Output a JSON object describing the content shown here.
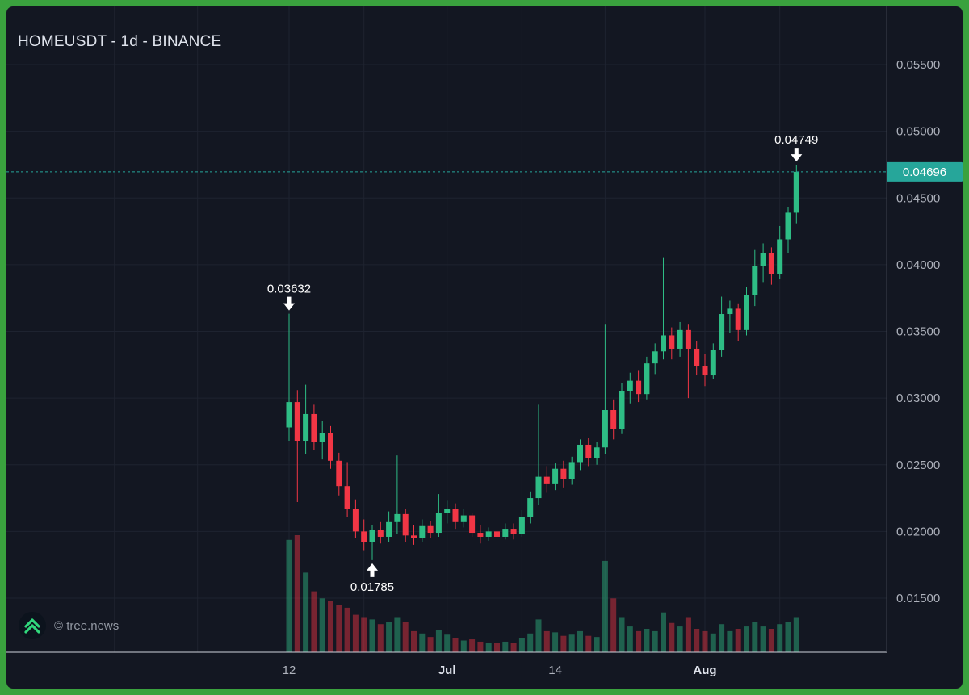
{
  "header": {
    "title": "HOMEUSDT - 1d - BINANCE"
  },
  "footer": {
    "watermark": "© tree.news",
    "logo": "tree-news-double-chevron-up-icon"
  },
  "colors": {
    "frame": "#3aa23e",
    "background": "#131722",
    "grid": "#1e2330",
    "axis_line": "#cfd3dc",
    "axis_separator": "#3e424d",
    "text_primary": "#dfe3ec",
    "text_axis": "#aeb2bc",
    "candle_up": "#2ebd85",
    "candle_down": "#f23645",
    "volume_up": "rgba(46,189,133,0.45)",
    "volume_down": "rgba(242,54,69,0.45)",
    "price_line": "#26a69a",
    "price_tag_bg": "#26a69a",
    "price_tag_text": "#ffffff",
    "annotation": "#ffffff",
    "logo_green": "#31d87c",
    "logo_bg": "#0c131d"
  },
  "chart_data": {
    "type": "candlestick",
    "symbol": "HOMEUSDT",
    "interval": "1d",
    "exchange": "BINANCE",
    "current_price": {
      "value": 0.04696,
      "label": "0.04696"
    },
    "y_axis": {
      "min": 0.015,
      "max": 0.055,
      "tick_step": 0.005,
      "side": "right",
      "ticks": [
        {
          "value": 0.055,
          "label": "0.05500"
        },
        {
          "value": 0.05,
          "label": "0.05000"
        },
        {
          "value": 0.045,
          "label": "0.04500"
        },
        {
          "value": 0.04,
          "label": "0.04000"
        },
        {
          "value": 0.035,
          "label": "0.03500"
        },
        {
          "value": 0.03,
          "label": "0.03000"
        },
        {
          "value": 0.025,
          "label": "0.02500"
        },
        {
          "value": 0.02,
          "label": "0.02000"
        },
        {
          "value": 0.015,
          "label": "0.01500"
        }
      ]
    },
    "x_axis": {
      "side": "bottom",
      "ticks": [
        {
          "index": 0,
          "label": "12",
          "bold": false
        },
        {
          "index": 19,
          "label": "Jul",
          "bold": true
        },
        {
          "index": 32,
          "label": "14",
          "bold": false
        },
        {
          "index": 50,
          "label": "Aug",
          "bold": true
        }
      ],
      "gridline_indices": [
        -21,
        -11,
        0,
        9,
        19,
        28,
        38,
        50,
        59
      ]
    },
    "annotations": [
      {
        "index": 0,
        "price": 0.03632,
        "label": "0.03632",
        "direction": "down"
      },
      {
        "index": 10,
        "price": 0.01785,
        "label": "0.01785",
        "direction": "up"
      },
      {
        "index": 61,
        "price": 0.04749,
        "label": "0.04749",
        "direction": "down"
      }
    ],
    "grid": true,
    "volume_unit": "relative",
    "candles": [
      [
        0.0278,
        0.03632,
        0.0268,
        0.0297,
        96
      ],
      [
        0.0297,
        0.0306,
        0.0222,
        0.0268,
        100
      ],
      [
        0.0268,
        0.031,
        0.0258,
        0.0288,
        68
      ],
      [
        0.0288,
        0.0295,
        0.0261,
        0.0267,
        52
      ],
      [
        0.0267,
        0.0283,
        0.0254,
        0.0274,
        46
      ],
      [
        0.0274,
        0.0279,
        0.0247,
        0.0253,
        44
      ],
      [
        0.0253,
        0.0259,
        0.0227,
        0.0234,
        40
      ],
      [
        0.0234,
        0.0252,
        0.0211,
        0.0217,
        38
      ],
      [
        0.0217,
        0.0224,
        0.0195,
        0.02,
        32
      ],
      [
        0.02,
        0.0209,
        0.0186,
        0.0192,
        30
      ],
      [
        0.0192,
        0.0205,
        0.01785,
        0.0201,
        28
      ],
      [
        0.0201,
        0.0207,
        0.0191,
        0.0196,
        24
      ],
      [
        0.0196,
        0.0215,
        0.0192,
        0.0207,
        26
      ],
      [
        0.0207,
        0.0257,
        0.0198,
        0.0213,
        30
      ],
      [
        0.0213,
        0.0217,
        0.0192,
        0.0197,
        26
      ],
      [
        0.0197,
        0.0205,
        0.019,
        0.0195,
        18
      ],
      [
        0.0195,
        0.0209,
        0.0192,
        0.0204,
        16
      ],
      [
        0.0204,
        0.0208,
        0.0195,
        0.0199,
        13
      ],
      [
        0.0199,
        0.0228,
        0.0196,
        0.0214,
        19
      ],
      [
        0.0214,
        0.0223,
        0.0206,
        0.0217,
        15
      ],
      [
        0.0217,
        0.0221,
        0.0202,
        0.0207,
        12
      ],
      [
        0.0207,
        0.0217,
        0.0203,
        0.0212,
        10
      ],
      [
        0.0212,
        0.0214,
        0.0196,
        0.0199,
        11
      ],
      [
        0.0199,
        0.0205,
        0.0191,
        0.0196,
        9
      ],
      [
        0.0196,
        0.0203,
        0.0193,
        0.02,
        8
      ],
      [
        0.02,
        0.0204,
        0.0192,
        0.0196,
        8
      ],
      [
        0.0196,
        0.0206,
        0.0194,
        0.0202,
        9
      ],
      [
        0.0202,
        0.0206,
        0.0194,
        0.0198,
        8
      ],
      [
        0.0198,
        0.0216,
        0.0196,
        0.0211,
        12
      ],
      [
        0.0211,
        0.023,
        0.0206,
        0.0225,
        16
      ],
      [
        0.0225,
        0.0295,
        0.022,
        0.0241,
        28
      ],
      [
        0.0241,
        0.0249,
        0.0229,
        0.0236,
        18
      ],
      [
        0.0236,
        0.0251,
        0.0231,
        0.0247,
        17
      ],
      [
        0.0247,
        0.0253,
        0.0233,
        0.0239,
        14
      ],
      [
        0.0239,
        0.0256,
        0.0235,
        0.0252,
        15
      ],
      [
        0.0252,
        0.0269,
        0.0246,
        0.0265,
        18
      ],
      [
        0.0265,
        0.027,
        0.0249,
        0.0255,
        14
      ],
      [
        0.0255,
        0.0267,
        0.025,
        0.0263,
        13
      ],
      [
        0.0263,
        0.0355,
        0.0258,
        0.0291,
        78
      ],
      [
        0.0291,
        0.0299,
        0.0269,
        0.0277,
        46
      ],
      [
        0.0277,
        0.0311,
        0.0273,
        0.0305,
        30
      ],
      [
        0.0305,
        0.0319,
        0.0296,
        0.0313,
        22
      ],
      [
        0.0313,
        0.0321,
        0.0297,
        0.0303,
        18
      ],
      [
        0.0303,
        0.0331,
        0.0299,
        0.0326,
        20
      ],
      [
        0.0326,
        0.0341,
        0.0318,
        0.0335,
        18
      ],
      [
        0.0335,
        0.0405,
        0.0329,
        0.0347,
        34
      ],
      [
        0.0347,
        0.0353,
        0.0329,
        0.0337,
        25
      ],
      [
        0.0337,
        0.0357,
        0.0331,
        0.0351,
        22
      ],
      [
        0.0351,
        0.0355,
        0.03,
        0.0337,
        30
      ],
      [
        0.0337,
        0.0343,
        0.0317,
        0.0324,
        20
      ],
      [
        0.0324,
        0.0333,
        0.0309,
        0.0317,
        18
      ],
      [
        0.0317,
        0.0341,
        0.0314,
        0.0336,
        16
      ],
      [
        0.0336,
        0.0376,
        0.0331,
        0.0363,
        24
      ],
      [
        0.0363,
        0.0373,
        0.0349,
        0.0367,
        18
      ],
      [
        0.0367,
        0.0371,
        0.0343,
        0.0351,
        20
      ],
      [
        0.0351,
        0.0383,
        0.0347,
        0.0377,
        22
      ],
      [
        0.0377,
        0.0411,
        0.0369,
        0.0399,
        26
      ],
      [
        0.0399,
        0.0416,
        0.0387,
        0.0409,
        22
      ],
      [
        0.0409,
        0.0413,
        0.0385,
        0.0393,
        20
      ],
      [
        0.0393,
        0.0429,
        0.0389,
        0.0419,
        24
      ],
      [
        0.0419,
        0.0443,
        0.0409,
        0.0439,
        26
      ],
      [
        0.0439,
        0.04749,
        0.0431,
        0.04696,
        30
      ]
    ]
  }
}
